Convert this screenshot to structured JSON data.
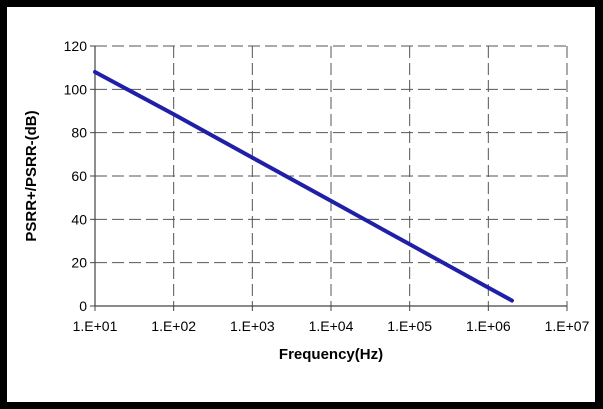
{
  "chart_data": {
    "type": "line",
    "xlabel": "Frequency(Hz)",
    "ylabel": "PSRR+/PSRR-(dB)",
    "x_scale": "log",
    "xlim": [
      10,
      10000000
    ],
    "ylim": [
      0,
      120
    ],
    "x_tick_labels": [
      "1.E+01",
      "1.E+02",
      "1.E+03",
      "1.E+04",
      "1.E+05",
      "1.E+06",
      "1.E+07"
    ],
    "y_tick_labels": [
      "0",
      "20",
      "40",
      "60",
      "80",
      "100",
      "120"
    ],
    "grid": "dashed major gridlines",
    "legend": "none",
    "series": [
      {
        "color": "#1f1fa8",
        "x": [
          10,
          100,
          1000,
          10000,
          100000,
          1000000,
          2000000
        ],
        "y": [
          108,
          88.5,
          68.5,
          48.5,
          28.5,
          8.5,
          2.5
        ]
      }
    ]
  }
}
